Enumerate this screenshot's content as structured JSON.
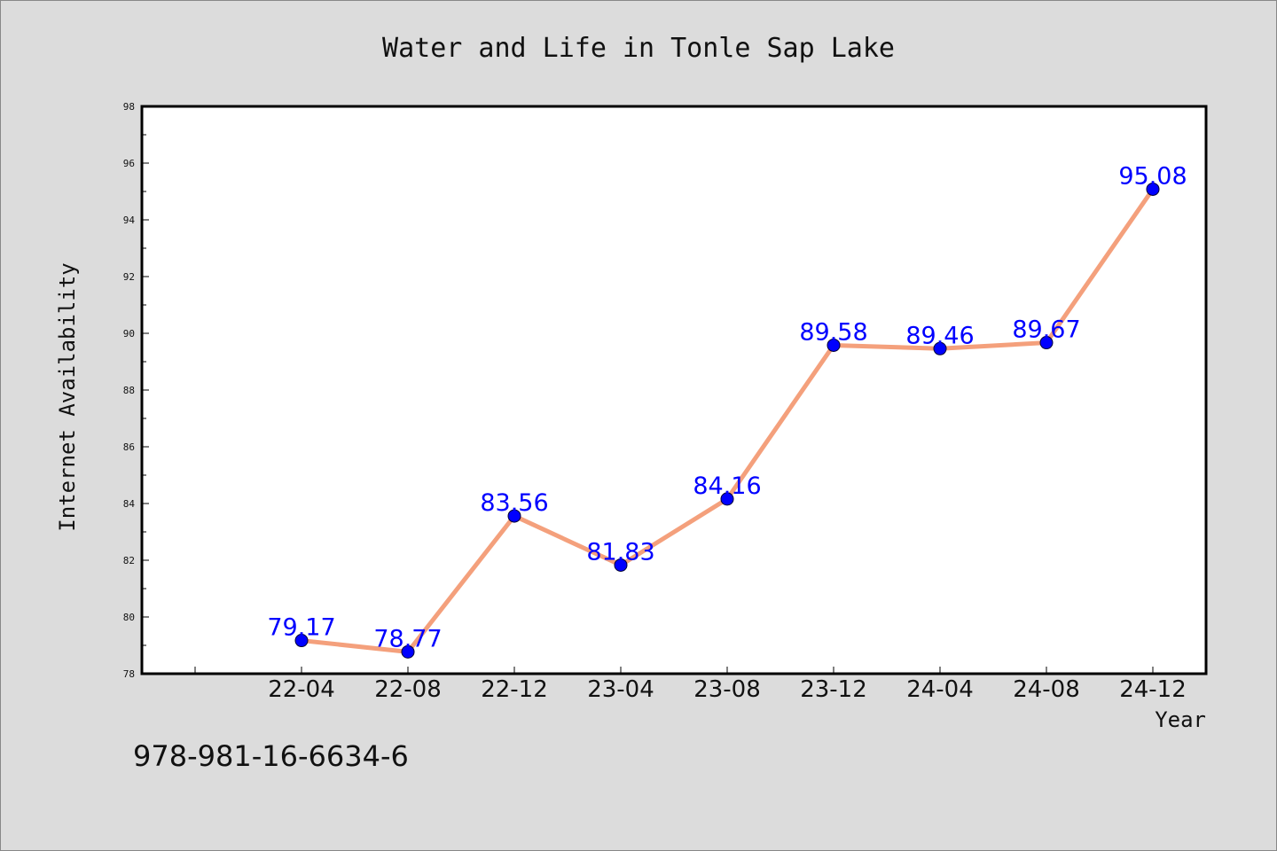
{
  "chart_data": {
    "type": "line",
    "title": "Water and Life in Tonle Sap Lake",
    "xlabel": "Year",
    "ylabel": "Internet Availability",
    "categories": [
      "22-04",
      "22-08",
      "22-12",
      "23-04",
      "23-08",
      "23-12",
      "24-04",
      "24-08",
      "24-12"
    ],
    "series": [
      {
        "values": [
          79.17,
          78.77,
          83.56,
          81.83,
          84.16,
          89.58,
          89.46,
          89.67,
          95.08
        ]
      }
    ],
    "value_labels": [
      "79.17",
      "78.77",
      "83.56",
      "81.83",
      "84.16",
      "89.58",
      "89.46",
      "89.67",
      "95.08"
    ],
    "ylim": [
      78,
      98
    ],
    "yticks": [
      "78",
      "80",
      "82",
      "84",
      "86",
      "88",
      "90",
      "92",
      "94",
      "96",
      "98"
    ],
    "grid": false,
    "line_color": "#f4a07c",
    "marker_color": "#0000ff",
    "label_color": "#0000ff"
  },
  "annotation": "978-981-16-6634-6"
}
